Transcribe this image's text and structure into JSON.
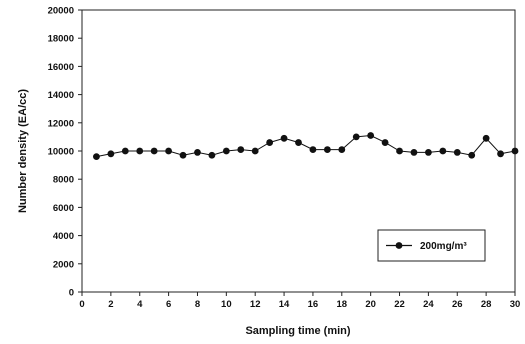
{
  "chart_data": {
    "type": "line",
    "xlabel": "Sampling time (min)",
    "ylabel": "Number density (EA/cc)",
    "xlim": [
      0,
      30
    ],
    "ylim": [
      0,
      20000
    ],
    "x_ticks": [
      0,
      2,
      4,
      6,
      8,
      10,
      12,
      14,
      16,
      18,
      20,
      22,
      24,
      26,
      28,
      30
    ],
    "y_ticks": [
      0,
      2000,
      4000,
      6000,
      8000,
      10000,
      12000,
      14000,
      16000,
      18000,
      20000
    ],
    "grid": false,
    "legend_position": "lower-right",
    "series": [
      {
        "name": "200mg/m³",
        "marker": "circle",
        "color": "#111111",
        "x": [
          1,
          2,
          3,
          4,
          5,
          6,
          7,
          8,
          9,
          10,
          11,
          12,
          13,
          14,
          15,
          16,
          17,
          18,
          19,
          20,
          21,
          22,
          23,
          24,
          25,
          26,
          27,
          28,
          29,
          30
        ],
        "y": [
          9600,
          9800,
          10000,
          10000,
          10000,
          10000,
          9700,
          9900,
          9700,
          10000,
          10100,
          10000,
          10600,
          10900,
          10600,
          10100,
          10100,
          10100,
          11000,
          11100,
          10600,
          10000,
          9900,
          9900,
          10000,
          9900,
          9700,
          10900,
          9800,
          10000
        ]
      }
    ]
  }
}
